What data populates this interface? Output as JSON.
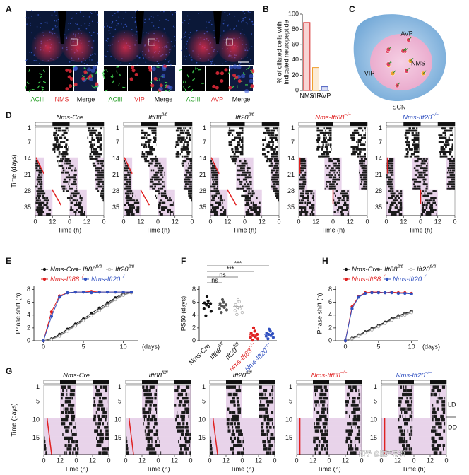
{
  "panel_letters": [
    "A",
    "B",
    "C",
    "D",
    "E",
    "F",
    "G",
    "H"
  ],
  "panel_a": {
    "stains": [
      [
        "ACIII",
        "NMS",
        "Merge"
      ],
      [
        "ACIII",
        "VIP",
        "Merge"
      ],
      [
        "ACIII",
        "AVP",
        "Merge"
      ]
    ]
  },
  "panel_c": {
    "regions": [
      "AVP",
      "NMS",
      "VIP"
    ],
    "title": "SCN"
  },
  "genotypes": [
    {
      "text": "Nms-Cre"
    },
    {
      "text": "Ift88",
      "sup": "fl/fl"
    },
    {
      "text": "Ift20",
      "sup": "fl/fl"
    },
    {
      "text": "Nms-Ift88",
      "sup": "−/−"
    },
    {
      "text": "Nms-Ift20",
      "sup": "−/−"
    }
  ],
  "genotype_colors": [
    "#111111",
    "#111111",
    "#111111",
    "#e02020",
    "#3050c0"
  ],
  "panel_d": {
    "yticks": [
      1,
      7,
      14,
      21,
      28,
      35
    ],
    "xticks": [
      0,
      12,
      0,
      12,
      0
    ],
    "xlabel": "Time (h)",
    "ylabel": "Time (days)"
  },
  "panel_g": {
    "yticks": [
      1,
      5,
      10,
      15
    ],
    "xticks": [
      0,
      12,
      0,
      12,
      0
    ],
    "xlabel": "Time (h)",
    "ylabel": "Time (days)",
    "conditions": [
      "LD",
      "DD"
    ]
  },
  "watermark": "知乎 @脑声常谈",
  "chart_data": [
    {
      "type": "bar",
      "panel": "B",
      "ylabel": [
        "% of ciliated cells with",
        "indicated neuropeptide"
      ],
      "categories": [
        "NMS",
        "VIP",
        "AVP"
      ],
      "values": [
        89,
        30,
        5
      ],
      "colors": [
        "#d62728",
        "#f0a030",
        "#4a5fc1"
      ],
      "ylim": [
        0,
        100
      ],
      "yticks": [
        0,
        20,
        40,
        60,
        80,
        100
      ]
    },
    {
      "type": "line",
      "panel": "E",
      "ylabel": "Phase shift (h)",
      "xlabel": "(days)",
      "x": [
        0,
        1,
        2,
        3,
        4,
        5,
        6,
        7,
        8,
        9,
        10,
        11
      ],
      "series": [
        {
          "name": {
            "text": "Nms-Cre"
          },
          "color": "#111111",
          "values": [
            0,
            0.3,
            1.0,
            1.8,
            2.6,
            3.4,
            4.3,
            5.1,
            5.9,
            6.7,
            7.4,
            7.6
          ]
        },
        {
          "name": {
            "text": "Ift88",
            "sup": "fl/fl"
          },
          "color": "#555555",
          "values": [
            0,
            0.2,
            0.8,
            1.6,
            2.4,
            3.2,
            4.0,
            4.8,
            5.7,
            6.5,
            7.2,
            7.5
          ]
        },
        {
          "name": {
            "text": "Ift20",
            "sup": "fl/fl"
          },
          "color": "#999999",
          "values": [
            0,
            0.2,
            0.7,
            1.5,
            2.3,
            3.1,
            3.9,
            4.7,
            5.5,
            6.4,
            7.1,
            7.5
          ]
        },
        {
          "name": {
            "text": "Nms-Ift88",
            "sup": "−/−"
          },
          "color": "#e02020",
          "values": [
            0,
            4.5,
            7.0,
            7.5,
            7.6,
            7.6,
            7.7,
            7.6,
            7.6,
            7.6,
            7.6,
            7.6
          ]
        },
        {
          "name": {
            "text": "Nms-Ift20",
            "sup": "−/−"
          },
          "color": "#3050c0",
          "values": [
            0,
            3.8,
            6.8,
            7.5,
            7.6,
            7.6,
            7.5,
            7.6,
            7.6,
            7.6,
            7.6,
            7.6
          ]
        }
      ],
      "xlim": [
        -1.2,
        11.8
      ],
      "xticks": [
        0,
        5,
        10
      ],
      "ylim": [
        0,
        8.5
      ],
      "yticks": [
        0,
        2,
        4,
        6,
        8
      ]
    },
    {
      "type": "dot",
      "panel": "F",
      "ylabel": "PS50 (days)",
      "categories": [
        {
          "text": "Nms-Cre"
        },
        {
          "text": "Ift88",
          "sup": "fl/fl"
        },
        {
          "text": "Ift20",
          "sup": "fl/fl"
        },
        {
          "text": "Nms-Ift88",
          "sup": "−/−"
        },
        {
          "text": "Nms-Ift20",
          "sup": "−/−"
        }
      ],
      "colors": [
        "#111111",
        "#555555",
        "#999999",
        "#e02020",
        "#3050c0"
      ],
      "means": [
        5.8,
        5.5,
        5.3,
        0.9,
        1.0
      ],
      "points": [
        [
          6.9,
          6.2,
          5.9,
          5.8,
          5.6,
          5.3,
          5.0,
          4.6,
          3.9
        ],
        [
          6.4,
          6.0,
          5.8,
          5.6,
          5.4,
          5.2,
          5.0,
          4.8,
          4.4
        ],
        [
          6.4,
          6.1,
          5.6,
          5.4,
          5.2,
          5.0,
          4.7,
          4.4,
          4.1
        ],
        [
          2.0,
          1.5,
          1.2,
          1.0,
          0.8,
          0.6,
          0.5,
          0.3,
          0.1
        ],
        [
          1.8,
          1.5,
          1.2,
          1.1,
          1.0,
          0.8,
          0.7,
          0.5,
          0.3
        ]
      ],
      "significance": [
        "ns",
        "ns",
        "***",
        "***"
      ],
      "ylim": [
        0,
        8.5
      ],
      "yticks": [
        0,
        2,
        4,
        6,
        8
      ]
    },
    {
      "type": "line",
      "panel": "H",
      "ylabel": "Phase shift (h)",
      "xlabel": "(days)",
      "x": [
        0,
        1,
        2,
        3,
        4,
        5,
        6,
        7,
        8,
        9,
        10
      ],
      "series": [
        {
          "name": {
            "text": "Nms-Cre"
          },
          "color": "#111111",
          "values": [
            0,
            0.4,
            0.9,
            1.4,
            1.9,
            2.4,
            2.9,
            3.4,
            3.9,
            4.3,
            4.6
          ]
        },
        {
          "name": {
            "text": "Ift88",
            "sup": "fl/fl"
          },
          "color": "#555555",
          "values": [
            0,
            0.3,
            0.8,
            1.3,
            1.8,
            2.3,
            2.8,
            3.3,
            3.8,
            4.2,
            4.5
          ]
        },
        {
          "name": {
            "text": "Ift20",
            "sup": "fl/fl"
          },
          "color": "#999999",
          "values": [
            0,
            0.3,
            0.7,
            1.2,
            1.7,
            2.2,
            2.7,
            3.2,
            3.6,
            4.0,
            4.4
          ]
        },
        {
          "name": {
            "text": "Nms-Ift88",
            "sup": "−/−"
          },
          "color": "#e02020",
          "values": [
            0,
            5.3,
            6.9,
            7.5,
            7.6,
            7.6,
            7.5,
            7.6,
            7.5,
            7.5,
            7.4
          ]
        },
        {
          "name": {
            "text": "Nms-Ift20",
            "sup": "−/−"
          },
          "color": "#3050c0",
          "values": [
            0,
            5.0,
            6.8,
            7.4,
            7.5,
            7.5,
            7.5,
            7.5,
            7.4,
            7.4,
            7.3
          ]
        }
      ],
      "xlim": [
        -1.5,
        11
      ],
      "xticks": [
        0,
        5,
        10
      ],
      "ylim": [
        0,
        8.5
      ],
      "yticks": [
        0,
        2,
        4,
        6,
        8
      ]
    }
  ]
}
